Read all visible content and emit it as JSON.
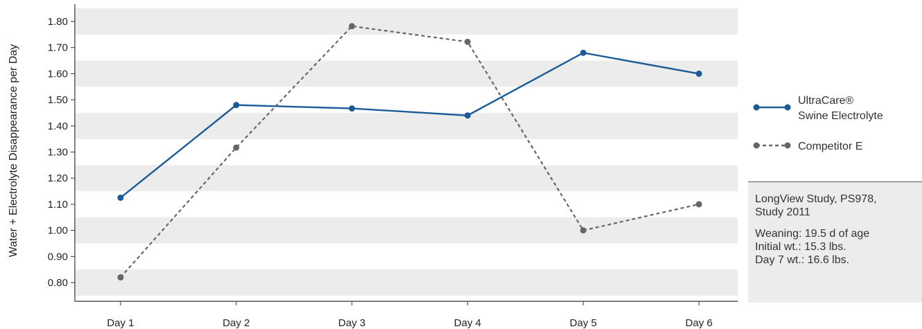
{
  "chart_data": {
    "type": "line",
    "categories": [
      "Day 1",
      "Day 2",
      "Day 3",
      "Day 4",
      "Day 5",
      "Day 6"
    ],
    "ylabel": "Water + Electrolyte Disappearance per Day",
    "ylim": [
      0.75,
      1.85
    ],
    "yticks": [
      "0.80",
      "0.90",
      "1.00",
      "1.10",
      "1.20",
      "1.30",
      "1.40",
      "1.50",
      "1.60",
      "1.70",
      "1.80"
    ],
    "series": [
      {
        "name": "UltraCare® Swine Electrolyte",
        "legend_lines": [
          "UltraCare®",
          "Swine Electrolyte"
        ],
        "values": [
          1.125,
          1.48,
          1.467,
          1.44,
          1.68,
          1.6
        ],
        "color": "#1a5a96",
        "style": "solid"
      },
      {
        "name": "Competitor E",
        "legend_lines": [
          "Competitor E"
        ],
        "values": [
          0.82,
          1.317,
          1.782,
          1.722,
          1.0,
          1.1
        ],
        "color": "#666666",
        "style": "dashed"
      }
    ],
    "grid": "alternating horizontal bands",
    "legend_position": "right"
  },
  "note": {
    "title_lines": [
      "LongView Study, PS978,",
      "Study 2011"
    ],
    "lines": [
      "Weaning: 19.5 d of age",
      "Initial wt.: 15.3 lbs.",
      "Day 7 wt.: 16.6 lbs."
    ]
  },
  "colors": {
    "band": "#ececec",
    "axis": "#333333"
  }
}
